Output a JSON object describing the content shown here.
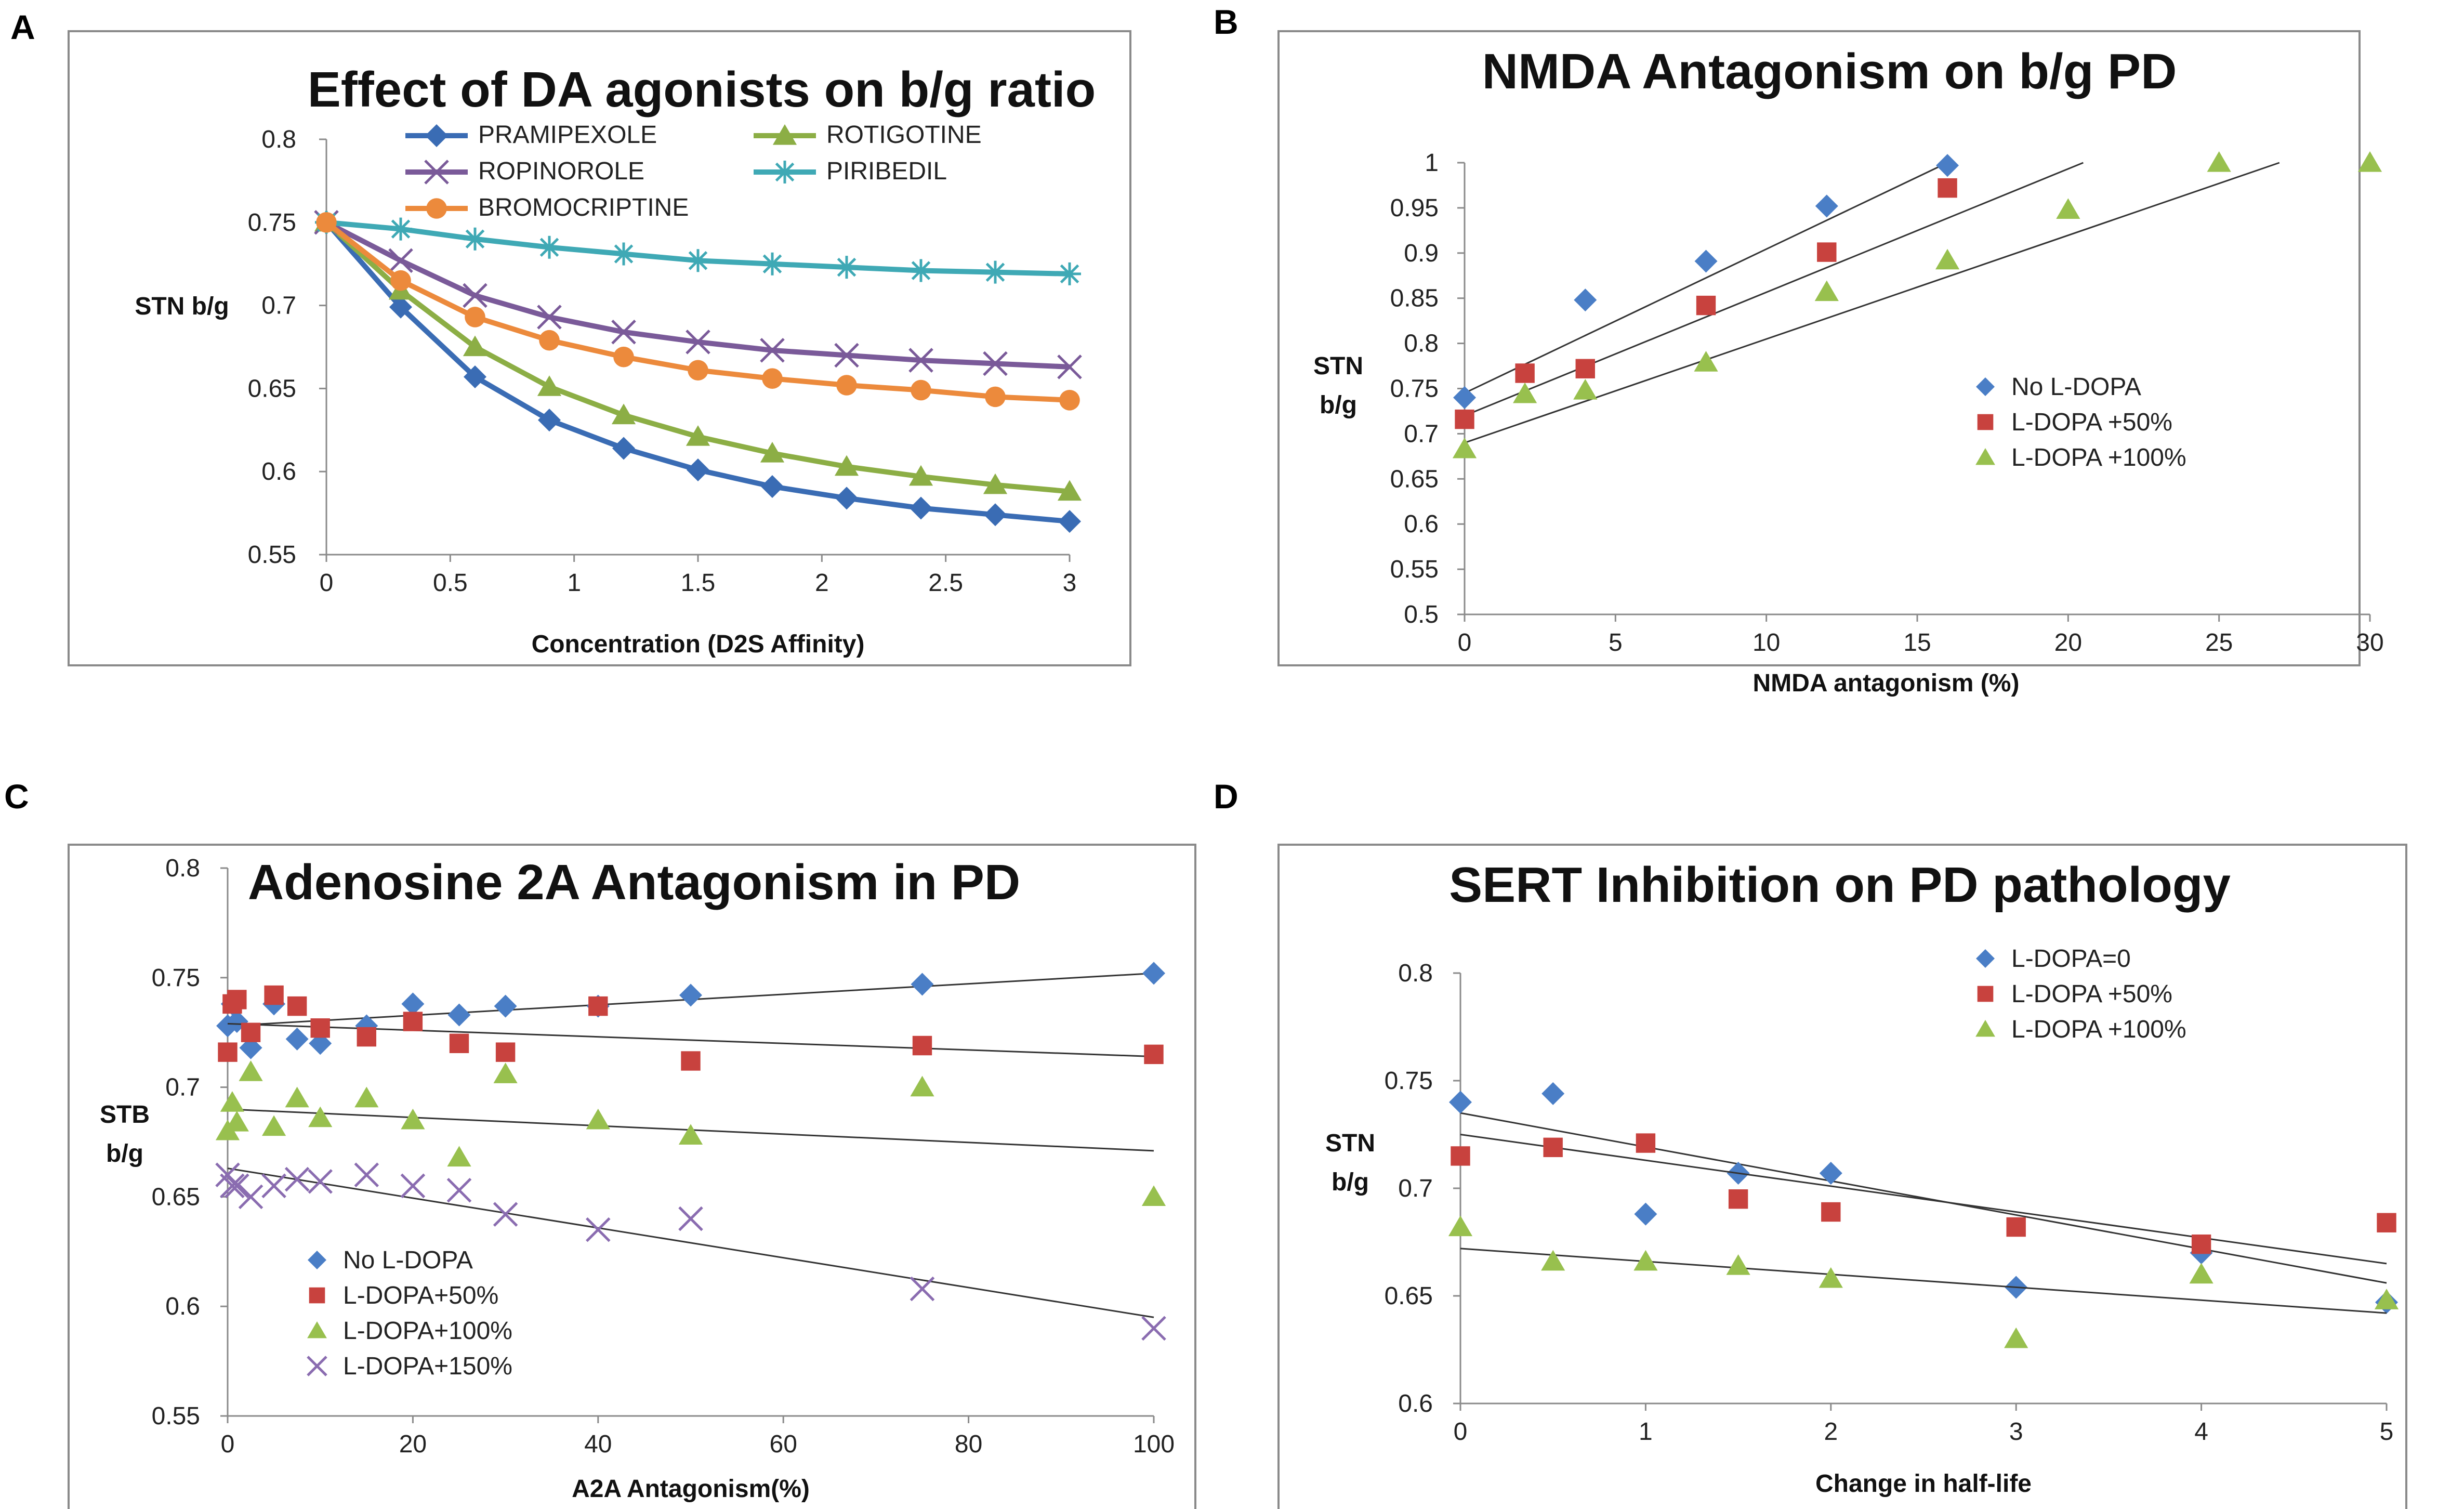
{
  "chart_data": [
    {
      "panel": "A",
      "type": "line",
      "title": "Effect of DA agonists on b/g ratio",
      "xlabel": "Concentration (D2S Affinity)",
      "ylabel": "STN b/g",
      "xlim": [
        0,
        3
      ],
      "ylim": [
        0.55,
        0.8
      ],
      "xticks": [
        "0",
        "0.5",
        "1",
        "1.5",
        "2",
        "2.5",
        "3"
      ],
      "yticks": [
        "0.55",
        "0.6",
        "0.65",
        "0.7",
        "0.75",
        "0.8"
      ],
      "legend_position": "top",
      "x": [
        0,
        0.3,
        0.6,
        0.9,
        1.2,
        1.5,
        1.8,
        2.1,
        2.4,
        2.7,
        3.0
      ],
      "series": [
        {
          "name": "PRAMIPEXOLE",
          "color": "#3a6cb4",
          "marker": "diamond",
          "values": [
            0.75,
            0.699,
            0.657,
            0.631,
            0.614,
            0.601,
            0.591,
            0.584,
            0.578,
            0.574,
            0.57
          ]
        },
        {
          "name": "ROTIGOTINE",
          "color": "#8cae45",
          "marker": "triangle",
          "values": [
            0.75,
            0.709,
            0.675,
            0.651,
            0.634,
            0.621,
            0.611,
            0.603,
            0.597,
            0.592,
            0.588
          ]
        },
        {
          "name": "ROPINOROLE",
          "color": "#7a5a99",
          "marker": "x",
          "values": [
            0.75,
            0.727,
            0.706,
            0.693,
            0.684,
            0.678,
            0.673,
            0.67,
            0.667,
            0.665,
            0.663
          ]
        },
        {
          "name": "PIRIBEDIL",
          "color": "#3fa9b5",
          "marker": "star",
          "values": [
            0.75,
            0.746,
            0.74,
            0.735,
            0.731,
            0.727,
            0.725,
            0.723,
            0.721,
            0.72,
            0.719
          ]
        },
        {
          "name": "BROMOCRIPTINE",
          "color": "#ec8a3c",
          "marker": "circle",
          "values": [
            0.75,
            0.715,
            0.693,
            0.679,
            0.669,
            0.661,
            0.656,
            0.652,
            0.649,
            0.645,
            0.643
          ]
        }
      ]
    },
    {
      "panel": "B",
      "type": "scatter",
      "title": "NMDA Antagonism on b/g PD",
      "xlabel": "NMDA antagonism  (%)",
      "ylabel_lines": [
        "STN",
        "b/g"
      ],
      "xlim": [
        0,
        30
      ],
      "ylim": [
        0.5,
        1.0
      ],
      "xticks": [
        "0",
        "5",
        "10",
        "15",
        "20",
        "25",
        "30"
      ],
      "yticks": [
        "0.5",
        "0.55",
        "0.6",
        "0.65",
        "0.7",
        "0.75",
        "0.8",
        "0.85",
        "0.9",
        "0.95",
        "1"
      ],
      "legend_position": "right",
      "series": [
        {
          "name": "No L-DOPA",
          "color": "#4a7ec6",
          "marker": "diamond",
          "x": [
            0,
            4,
            8,
            12,
            16
          ],
          "y": [
            0.74,
            0.848,
            0.891,
            0.952,
            0.997
          ],
          "trend": [
            [
              0,
              0.745
            ],
            [
              16,
              1.0
            ]
          ]
        },
        {
          "name": "L-DOPA +50%",
          "color": "#c8423e",
          "marker": "square",
          "x": [
            0,
            2,
            4,
            8,
            12,
            16
          ],
          "y": [
            0.716,
            0.767,
            0.772,
            0.842,
            0.901,
            0.972
          ],
          "trend": [
            [
              0,
              0.72
            ],
            [
              20.5,
              1.0
            ]
          ]
        },
        {
          "name": "L-DOPA +100%",
          "color": "#98c04e",
          "marker": "triangle",
          "x": [
            0,
            2,
            4,
            8,
            12,
            16,
            20,
            25,
            30
          ],
          "y": [
            0.683,
            0.744,
            0.748,
            0.779,
            0.857,
            0.892,
            0.948,
            1.0,
            1.0
          ],
          "trend": [
            [
              0,
              0.69
            ],
            [
              27,
              1.0
            ]
          ]
        }
      ]
    },
    {
      "panel": "C",
      "type": "scatter",
      "title": "Adenosine 2A Antagonism in PD",
      "xlabel": "A2A Antagonism(%)",
      "ylabel_lines": [
        "STB",
        "b/g"
      ],
      "xlim": [
        0,
        100
      ],
      "ylim": [
        0.55,
        0.8
      ],
      "xticks": [
        "0",
        "20",
        "40",
        "60",
        "80",
        "100"
      ],
      "yticks": [
        "0.55",
        "0.6",
        "0.65",
        "0.7",
        "0.75",
        "0.8"
      ],
      "legend_position": "bottom-left",
      "series": [
        {
          "name": "No L-DOPA",
          "color": "#4a7ec6",
          "marker": "diamond",
          "x": [
            0,
            0.5,
            1,
            2.5,
            5,
            7.5,
            10,
            15,
            20,
            25,
            30,
            40,
            50,
            75,
            100
          ],
          "y": [
            0.728,
            0.738,
            0.73,
            0.718,
            0.738,
            0.722,
            0.72,
            0.728,
            0.738,
            0.733,
            0.737,
            0.737,
            0.742,
            0.747,
            0.752
          ],
          "trend": [
            [
              0,
              0.728
            ],
            [
              100,
              0.752
            ]
          ]
        },
        {
          "name": "L-DOPA+50%",
          "color": "#c8423e",
          "marker": "square",
          "x": [
            0,
            0.5,
            1,
            2.5,
            5,
            7.5,
            10,
            15,
            20,
            25,
            30,
            40,
            50,
            75,
            100
          ],
          "y": [
            0.716,
            0.738,
            0.74,
            0.725,
            0.742,
            0.737,
            0.727,
            0.723,
            0.73,
            0.72,
            0.716,
            0.737,
            0.712,
            0.719,
            0.715
          ],
          "trend": [
            [
              0,
              0.729
            ],
            [
              100,
              0.714
            ]
          ]
        },
        {
          "name": "L-DOPA+100%",
          "color": "#98c04e",
          "marker": "triangle",
          "x": [
            0,
            0.5,
            1,
            2.5,
            5,
            7.5,
            10,
            15,
            20,
            25,
            30,
            40,
            50,
            75,
            100
          ],
          "y": [
            0.68,
            0.693,
            0.684,
            0.707,
            0.682,
            0.695,
            0.686,
            0.695,
            0.685,
            0.668,
            0.706,
            0.685,
            0.678,
            0.7,
            0.65
          ],
          "trend": [
            [
              0,
              0.69
            ],
            [
              100,
              0.671
            ]
          ]
        },
        {
          "name": "L-DOPA+150%",
          "color": "#8a6cb0",
          "marker": "x",
          "x": [
            0,
            0.5,
            1,
            2.5,
            5,
            7.5,
            10,
            15,
            20,
            25,
            30,
            40,
            50,
            75,
            100
          ],
          "y": [
            0.66,
            0.655,
            0.655,
            0.65,
            0.655,
            0.658,
            0.657,
            0.66,
            0.655,
            0.653,
            0.642,
            0.635,
            0.64,
            0.608,
            0.59
          ],
          "trend": [
            [
              0,
              0.663
            ],
            [
              100,
              0.595
            ]
          ]
        }
      ]
    },
    {
      "panel": "D",
      "type": "scatter",
      "title": "SERT Inhibition on PD pathology",
      "xlabel": "Change in half-life",
      "ylabel_lines": [
        "STN",
        "b/g"
      ],
      "xlim": [
        0,
        5
      ],
      "ylim": [
        0.6,
        0.8
      ],
      "xticks": [
        "0",
        "1",
        "2",
        "3",
        "4",
        "5"
      ],
      "yticks": [
        "0.6",
        "0.65",
        "0.7",
        "0.75",
        "0.8"
      ],
      "legend_position": "top-right",
      "series": [
        {
          "name": "L-DOPA=0",
          "color": "#4a7ec6",
          "marker": "diamond",
          "x": [
            0,
            0.5,
            1,
            1.5,
            2,
            3,
            4,
            5
          ],
          "y": [
            0.74,
            0.744,
            0.688,
            0.707,
            0.707,
            0.654,
            0.67,
            0.647
          ],
          "trend": [
            [
              0,
              0.735
            ],
            [
              5,
              0.656
            ]
          ]
        },
        {
          "name": "L-DOPA +50%",
          "color": "#c8423e",
          "marker": "square",
          "x": [
            0,
            0.5,
            1,
            1.5,
            2,
            3,
            4,
            5
          ],
          "y": [
            0.715,
            0.719,
            0.721,
            0.695,
            0.689,
            0.682,
            0.674,
            0.684
          ],
          "trend": [
            [
              0,
              0.725
            ],
            [
              5,
              0.665
            ]
          ]
        },
        {
          "name": "L-DOPA +100%",
          "color": "#98c04e",
          "marker": "triangle",
          "x": [
            0,
            0.5,
            1,
            1.5,
            2,
            3,
            4,
            5
          ],
          "y": [
            0.682,
            0.666,
            0.666,
            0.664,
            0.658,
            0.63,
            0.66,
            0.648
          ],
          "trend": [
            [
              0,
              0.672
            ],
            [
              5,
              0.642
            ]
          ]
        }
      ]
    }
  ]
}
